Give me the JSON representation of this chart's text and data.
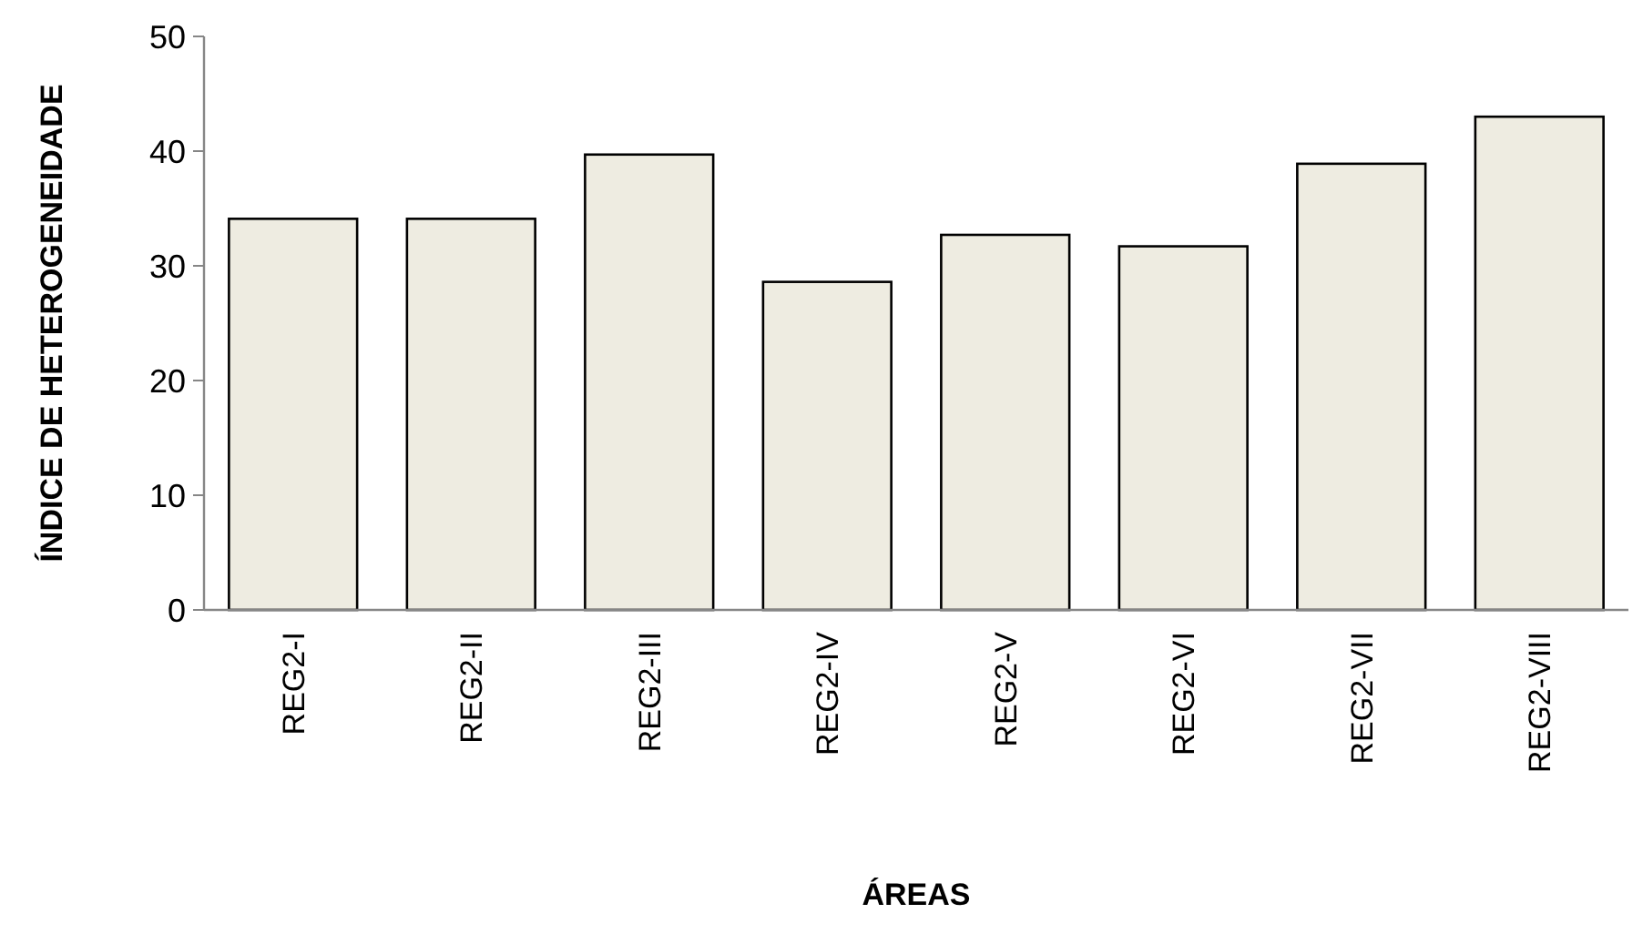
{
  "chart_data": {
    "type": "bar",
    "xlabel": "ÁREAS",
    "ylabel": "ÍNDICE DE HETEROGENEIDADE",
    "categories": [
      "REG2-I",
      "REG2-II",
      "REG2-III",
      "REG2-IV",
      "REG2-V",
      "REG2-VI",
      "REG2-VII",
      "REG2-VIII"
    ],
    "values": [
      34.1,
      34.1,
      39.7,
      28.6,
      32.7,
      31.7,
      38.9,
      43.0
    ],
    "color": "#eeece1",
    "ylim": [
      0,
      50
    ],
    "yticks": [
      0,
      10,
      20,
      30,
      40,
      50
    ],
    "grid": false
  }
}
